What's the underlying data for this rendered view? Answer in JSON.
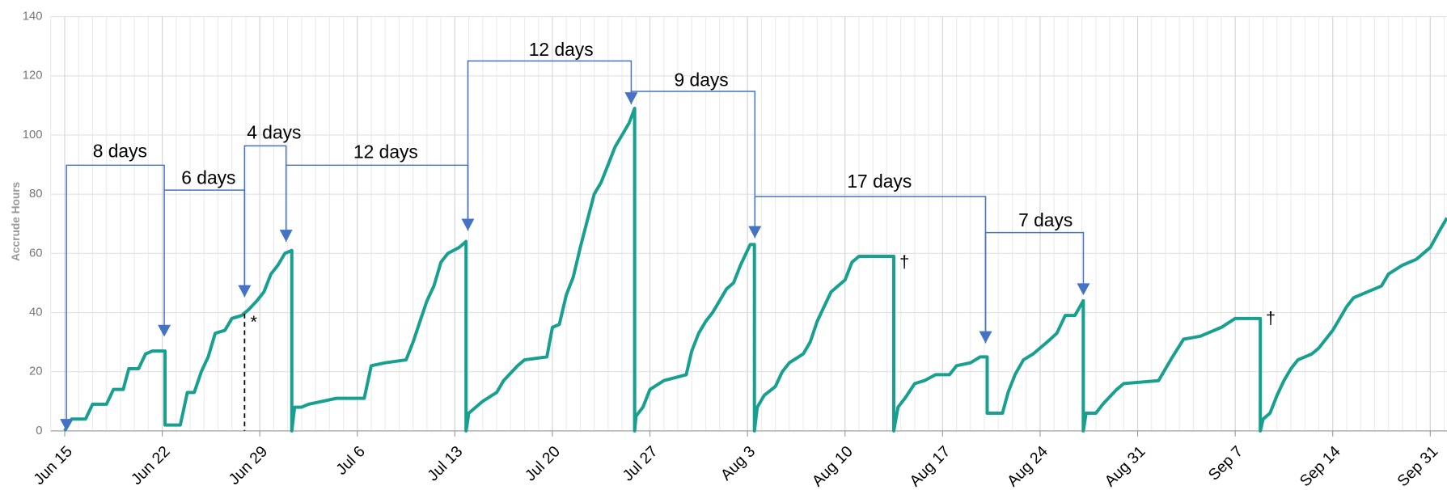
{
  "chart_data": {
    "type": "line",
    "y_label": "Accrude Hours",
    "color": "#17a08f",
    "grid": true,
    "xlim": [
      -1,
      99.2
    ],
    "ylim": [
      0,
      140
    ],
    "yticks": [
      0,
      20,
      40,
      60,
      80,
      100,
      120,
      140
    ],
    "xticks": [
      {
        "value": 0,
        "label": "Jun 15"
      },
      {
        "value": 7,
        "label": "Jun 22"
      },
      {
        "value": 14,
        "label": "Jun 29"
      },
      {
        "value": 21,
        "label": "Jul 6"
      },
      {
        "value": 28,
        "label": "Jul 13"
      },
      {
        "value": 35,
        "label": "Jul 20"
      },
      {
        "value": 42,
        "label": "Jul 27"
      },
      {
        "value": 49,
        "label": "Aug 3"
      },
      {
        "value": 56,
        "label": "Aug 10"
      },
      {
        "value": 63,
        "label": "Aug 17"
      },
      {
        "value": 70,
        "label": "Aug 24"
      },
      {
        "value": 77,
        "label": "Aug 31"
      },
      {
        "value": 84,
        "label": "Sep 7"
      },
      {
        "value": 91,
        "label": "Sep 14"
      },
      {
        "value": 98,
        "label": "Sep 31"
      }
    ],
    "x": [
      0,
      0.5,
      1.5,
      2,
      3,
      3.5,
      4.2,
      4.6,
      5.3,
      5.8,
      6.3,
      7.2,
      7.2,
      8.3,
      8.8,
      9.3,
      9.8,
      10.3,
      10.8,
      11.5,
      12,
      12.7,
      13.2,
      13.8,
      14.3,
      14.8,
      15.3,
      15.8,
      16.3,
      16.3,
      16.5,
      17,
      17.5,
      18.5,
      19.5,
      21.5,
      22,
      23,
      24.5,
      25,
      25.5,
      26,
      26.5,
      27,
      27.5,
      28.3,
      28.8,
      28.8,
      29,
      29.5,
      30,
      31,
      31.5,
      32.5,
      33,
      34.6,
      35,
      35.5,
      36,
      36.5,
      37,
      37.5,
      38,
      38.5,
      39,
      39.5,
      40,
      40.5,
      40.9,
      40.9,
      41,
      41.5,
      42,
      43,
      44.6,
      45,
      45.5,
      46,
      46.5,
      47,
      47.5,
      48,
      48.5,
      49.2,
      49.5,
      49.5,
      49.7,
      50.2,
      51,
      51.5,
      52,
      53,
      53.5,
      54,
      54.5,
      55,
      55.5,
      56,
      56.5,
      57,
      59.5,
      59.5,
      59.8,
      60.3,
      61,
      61.7,
      62.5,
      63.5,
      64,
      65,
      65.7,
      66.2,
      66.2,
      67.3,
      67.7,
      68.2,
      68.8,
      69.5,
      70.5,
      71.2,
      71.8,
      72.5,
      73.1,
      73.1,
      73.3,
      74,
      74.5,
      75.5,
      76,
      78.5,
      79.5,
      80.3,
      81.5,
      83,
      84,
      85.8,
      85.8,
      86,
      86.5,
      87,
      87.5,
      88,
      88.5,
      89.5,
      90,
      91,
      92,
      92.5,
      93.5,
      94.5,
      95,
      96,
      97,
      98,
      98.7,
      99.2
    ],
    "values": [
      0,
      4,
      4,
      9,
      9,
      14,
      14,
      21,
      21,
      26,
      27,
      27,
      2,
      2,
      13,
      13,
      20,
      25,
      33,
      34,
      38,
      39,
      41,
      44,
      47,
      53,
      56,
      60,
      61,
      0,
      8,
      8,
      9,
      10,
      11,
      11,
      22,
      23,
      24,
      30,
      37,
      44,
      49,
      57,
      60,
      62,
      64,
      0,
      6,
      8,
      10,
      13,
      17,
      22,
      24,
      25,
      35,
      36,
      46,
      52,
      62,
      71,
      80,
      84,
      90,
      96,
      100,
      104,
      109,
      0,
      5,
      8,
      14,
      17,
      19,
      27,
      33,
      37,
      40,
      44,
      48,
      50,
      56,
      63,
      63,
      0,
      8,
      12,
      15,
      20,
      23,
      26,
      30,
      37,
      42,
      47,
      49,
      51,
      57,
      59,
      59,
      0,
      8,
      11,
      16,
      17,
      19,
      19,
      22,
      23,
      25,
      25,
      6,
      6,
      13,
      19,
      24,
      26,
      30,
      33,
      39,
      39,
      44,
      0,
      6,
      6,
      9,
      14,
      16,
      17,
      25,
      31,
      32,
      35,
      38,
      38,
      0,
      4,
      6,
      12,
      17,
      21,
      24,
      26,
      28,
      34,
      42,
      45,
      47,
      49,
      53,
      56,
      58,
      62,
      68,
      72
    ],
    "annotations": [
      "8 days",
      "6 days",
      "4 days",
      "12 days",
      "12 days",
      "9 days",
      "17 days",
      "7 days"
    ],
    "markers": [
      "*",
      "†",
      "†"
    ]
  }
}
